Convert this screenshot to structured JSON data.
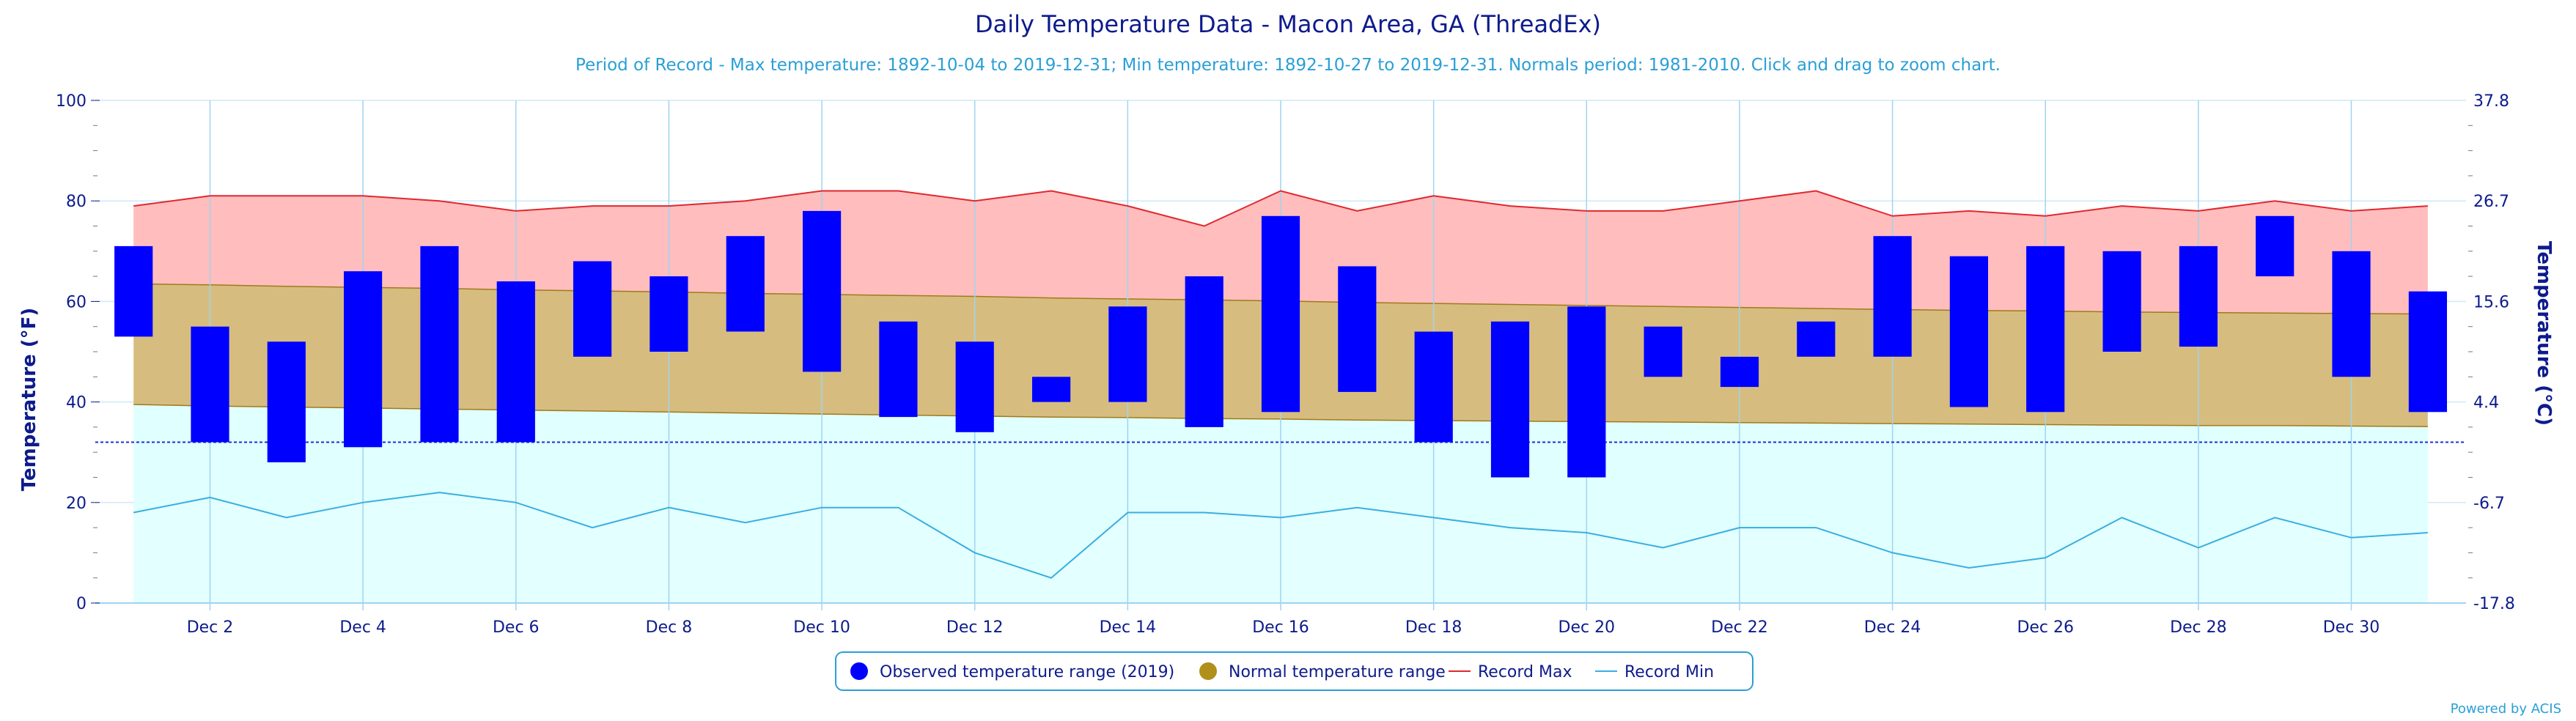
{
  "title": "Daily Temperature Data - Macon Area, GA (ThreadEx)",
  "subtitle": "Period of Record - Max temperature: 1892-10-04 to 2019-12-31; Min temperature: 1892-10-27 to 2019-12-31. Normals period: 1981-2010. Click and drag to zoom chart.",
  "credit": "Powered by ACIS",
  "chart_data": {
    "type": "area",
    "title": "Daily Temperature Data - Macon Area, GA (ThreadEx)",
    "ylabel": "Temperature (°F)",
    "y2label": "Temperature (°C)",
    "ylim": [
      0,
      100
    ],
    "y_ticks": [
      0,
      20,
      40,
      60,
      80,
      100
    ],
    "y2_ticks": [
      "-17.8",
      "-6.7",
      "4.4",
      "15.6",
      "26.7",
      "37.8"
    ],
    "x_tick_labels": [
      "Dec 2",
      "Dec 4",
      "Dec 6",
      "Dec 8",
      "Dec 10",
      "Dec 12",
      "Dec 14",
      "Dec 16",
      "Dec 18",
      "Dec 20",
      "Dec 22",
      "Dec 24",
      "Dec 26",
      "Dec 28",
      "Dec 30"
    ],
    "days": [
      1,
      2,
      3,
      4,
      5,
      6,
      7,
      8,
      9,
      10,
      11,
      12,
      13,
      14,
      15,
      16,
      17,
      18,
      19,
      20,
      21,
      22,
      23,
      24,
      25,
      26,
      27,
      28,
      29,
      30,
      31
    ],
    "freezing_line": 32,
    "grid": true,
    "legend_position": "bottom",
    "series": [
      {
        "name": "Observed temperature range (2019)",
        "kind": "range-bars",
        "low": [
          53,
          32,
          28,
          31,
          32,
          32,
          49,
          50,
          54,
          46,
          37,
          34,
          40,
          40,
          35,
          38,
          42,
          32,
          25,
          25,
          45,
          43,
          49,
          49,
          39,
          38,
          50,
          51,
          65,
          45,
          38
        ],
        "high": [
          71,
          55,
          52,
          66,
          71,
          64,
          68,
          65,
          73,
          78,
          56,
          52,
          45,
          59,
          65,
          77,
          67,
          54,
          56,
          59,
          55,
          49,
          56,
          73,
          69,
          71,
          70,
          71,
          77,
          70,
          62
        ]
      },
      {
        "name": "Normal temperature range",
        "kind": "range-area",
        "low": [
          39.5,
          39.2,
          39,
          38.8,
          38.6,
          38.4,
          38.2,
          38,
          37.8,
          37.6,
          37.4,
          37.2,
          37,
          36.9,
          36.7,
          36.6,
          36.4,
          36.3,
          36.2,
          36.1,
          36,
          35.9,
          35.8,
          35.7,
          35.6,
          35.5,
          35.4,
          35.3,
          35.3,
          35.2,
          35.1
        ],
        "high": [
          63.5,
          63.3,
          63,
          62.8,
          62.6,
          62.3,
          62.1,
          61.9,
          61.6,
          61.4,
          61.2,
          61,
          60.7,
          60.5,
          60.3,
          60.1,
          59.8,
          59.6,
          59.4,
          59.2,
          59,
          58.8,
          58.6,
          58.4,
          58.2,
          58.1,
          57.9,
          57.8,
          57.7,
          57.6,
          57.5
        ]
      },
      {
        "name": "Record Max",
        "kind": "line",
        "color": "#e0282e",
        "values": [
          79,
          81,
          81,
          81,
          80,
          78,
          79,
          79,
          80,
          82,
          82,
          80,
          82,
          79,
          75,
          82,
          78,
          81,
          79,
          78,
          78,
          80,
          82,
          77,
          78,
          77,
          79,
          78,
          80,
          78,
          79
        ]
      },
      {
        "name": "Record Min",
        "kind": "line",
        "color": "#3aaee0",
        "values": [
          18,
          21,
          17,
          20,
          22,
          20,
          15,
          19,
          16,
          19,
          19,
          10,
          5,
          18,
          18,
          17,
          19,
          17,
          15,
          14,
          11,
          15,
          15,
          10,
          7,
          9,
          17,
          11,
          17,
          13,
          14
        ]
      }
    ]
  },
  "colors": {
    "observed": "#0000ff",
    "normal_fill": "#d6bd7f",
    "normal_stroke": "#a07a1a",
    "record_max_fill": "#ffbdbd",
    "record_min_fill": "#e0ffff",
    "axis_text": "#0d1b8c",
    "grid_vertical": "#9fd4f0",
    "grid_horizontal": "#cdeaf7",
    "freezing_line": "#1a2fd6",
    "normal_legend_dot": "#b0901a"
  },
  "legend": {
    "items": [
      {
        "label": "Observed temperature range (2019)",
        "symbol": "dot",
        "color": "#0000ff"
      },
      {
        "label": "Normal temperature range",
        "symbol": "dot",
        "color": "#b0901a"
      },
      {
        "label": "Record Max",
        "symbol": "line",
        "color": "#e0282e"
      },
      {
        "label": "Record Min",
        "symbol": "line",
        "color": "#3aaee0"
      }
    ]
  }
}
